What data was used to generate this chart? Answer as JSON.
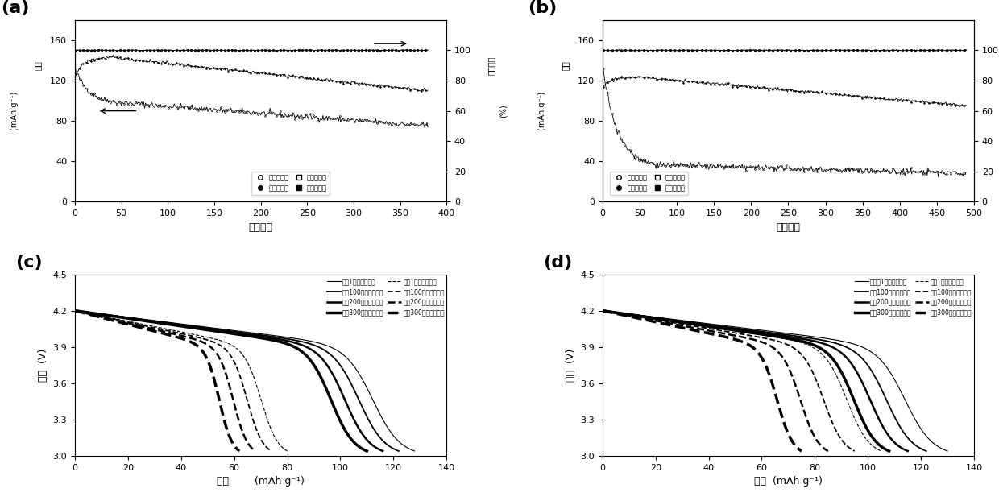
{
  "panel_labels": [
    "(a)",
    "(b)",
    "(c)",
    "(d)"
  ],
  "panel_label_fontsize": 16,
  "panel_label_fontweight": "bold",
  "plot_a": {
    "xlabel": "循环周数",
    "ylabel_left": "容量\n(mAh g⁻¹)",
    "ylabel_right": "库伦效率\n(%)",
    "xlim": [
      0,
      400
    ],
    "ylim_left": [
      0,
      180
    ],
    "ylim_right": [
      0,
      120
    ],
    "yticks_left": [
      0,
      40,
      80,
      120,
      160
    ],
    "yticks_right": [
      0,
      20,
      40,
      60,
      80,
      100
    ],
    "xticks": [
      0,
      50,
      100,
      150,
      200,
      250,
      300,
      350,
      400
    ]
  },
  "plot_b": {
    "xlabel": "循环周数",
    "ylabel_left": "容量\n(mAh g⁻¹)",
    "ylabel_right": "库伦效率\n(%)",
    "xlim": [
      0,
      500
    ],
    "ylim_left": [
      0,
      180
    ],
    "ylim_right": [
      0,
      120
    ],
    "yticks_left": [
      0,
      40,
      80,
      120,
      160
    ],
    "yticks_right": [
      0,
      20,
      40,
      60,
      80,
      100
    ],
    "xticks": [
      0,
      50,
      100,
      150,
      200,
      250,
      300,
      350,
      400,
      450,
      500
    ]
  },
  "plot_c": {
    "xlabel_part1": "容量",
    "xlabel_part2": "(mAh g⁻¹)",
    "ylabel": "电压  (V)",
    "xlim": [
      0,
      140
    ],
    "ylim": [
      3.0,
      4.5
    ],
    "yticks": [
      3.0,
      3.3,
      3.6,
      3.9,
      4.2,
      4.5
    ],
    "xticks": [
      0,
      20,
      40,
      60,
      80,
      100,
      120,
      140
    ],
    "solid_caps": [
      128,
      122,
      116,
      110
    ],
    "dashed_caps": [
      80,
      74,
      68,
      62
    ],
    "legend_solid": [
      "循环1次镁修饰隔膜",
      "循环100次镁修饰隔膜",
      "循环200次镁修饰隔膜",
      "循环300次镁修饰隔膜"
    ],
    "legend_dashed": [
      "循环1次未修饰隔膜",
      "循环100次未修饰隔膜",
      "循环200次未修饰隔膜",
      "循环300次未修饰隔膜"
    ]
  },
  "plot_d": {
    "xlabel_part1": "容量",
    "xlabel_part2": "(mAh g⁻¹)",
    "ylabel": "电压  (V)",
    "xlim": [
      0,
      140
    ],
    "ylim": [
      3.0,
      4.5
    ],
    "yticks": [
      3.0,
      3.3,
      3.6,
      3.9,
      4.2,
      4.5
    ],
    "xticks": [
      0,
      20,
      40,
      60,
      80,
      100,
      120,
      140
    ],
    "solid_caps": [
      130,
      122,
      115,
      108
    ],
    "dashed_caps": [
      105,
      95,
      85,
      75
    ],
    "legend_solid": [
      "镁循环1次镁修饰隔膜",
      "循环100次镁修饰隔膜",
      "循环200次镁修饰隔膜",
      "循环300次镁修饰隔膜"
    ],
    "legend_dashed": [
      "循环1次未修饰隔膜",
      "循环100次未修饰隔膜",
      "循环200次未修饰隔膜",
      "循环300次未修饰隔膜"
    ]
  },
  "axis_fontsize": 9,
  "tick_fontsize": 8,
  "legend_fontsize": 6
}
